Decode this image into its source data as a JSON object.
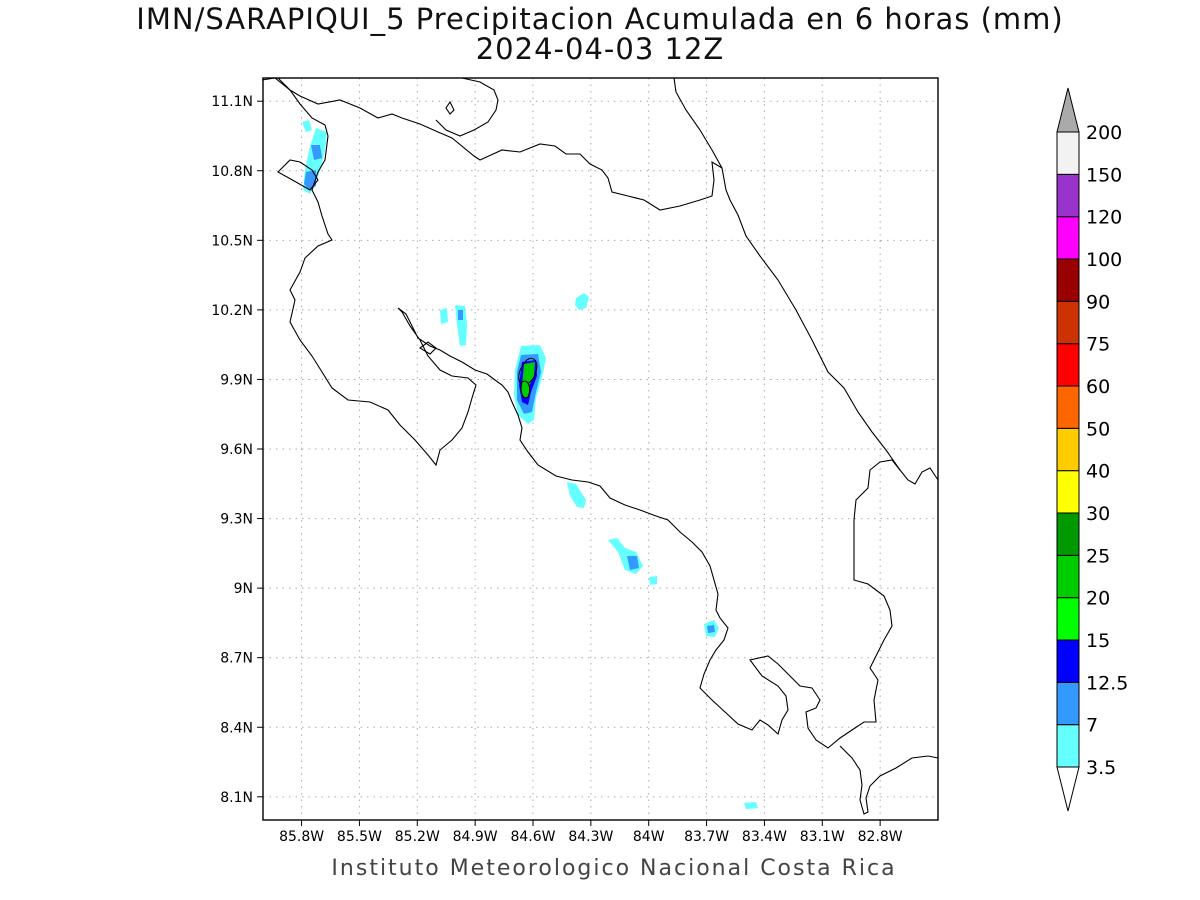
{
  "header": {
    "title": "IMN/SARAPIQUI_5 Precipitacion Acumulada en 6 horas (mm)",
    "subtitle": "2024-04-03 12Z"
  },
  "footer": {
    "credit": "Instituto Meteorologico Nacional Costa Rica"
  },
  "map": {
    "lon_range": [
      -86.0,
      -82.5
    ],
    "lat_range": [
      8.0,
      11.2
    ],
    "x_ticks": [
      "85.8W",
      "85.5W",
      "85.2W",
      "84.9W",
      "84.6W",
      "84.3W",
      "84W",
      "83.7W",
      "83.4W",
      "83.1W",
      "82.8W"
    ],
    "y_ticks": [
      "11.1N",
      "10.8N",
      "10.5N",
      "10.2N",
      "9.9N",
      "9.6N",
      "9.3N",
      "9N",
      "8.7N",
      "8.4N",
      "8.1N"
    ],
    "grid": "dotted",
    "colors": {
      "coastline": "#000000",
      "grid": "#aaaaaa",
      "frame": "#000000"
    }
  },
  "colorbar": {
    "labels": [
      "3.5",
      "7",
      "12.5",
      "15",
      "20",
      "25",
      "30",
      "40",
      "50",
      "60",
      "75",
      "90",
      "100",
      "120",
      "150",
      "200"
    ],
    "colors": [
      "#66ffff",
      "#3399ff",
      "#0000ff",
      "#00ff00",
      "#00cc00",
      "#009900",
      "#ffff00",
      "#ffcc00",
      "#ff6600",
      "#ff0000",
      "#cc3300",
      "#990000",
      "#ff00ff",
      "#9933cc",
      "#f2f2f2"
    ],
    "over_color": "#aaaaaa",
    "under_color": "#ffffff"
  }
}
